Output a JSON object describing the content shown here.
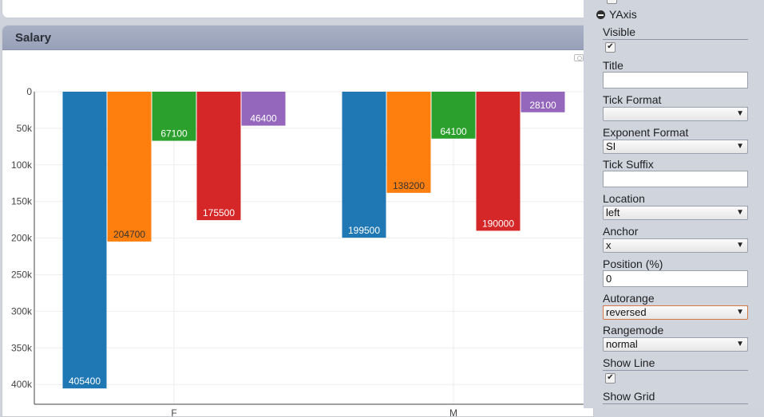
{
  "chart_panel": {
    "title": "Salary"
  },
  "sidebar": {
    "section": "YAxis",
    "fields": {
      "visible": {
        "label": "Visible",
        "checked": true
      },
      "title": {
        "label": "Title",
        "value": ""
      },
      "tick_format": {
        "label": "Tick Format",
        "value": ""
      },
      "exponent_format": {
        "label": "Exponent Format",
        "value": "SI"
      },
      "tick_suffix": {
        "label": "Tick Suffix",
        "value": ""
      },
      "location": {
        "label": "Location",
        "value": "left"
      },
      "anchor": {
        "label": "Anchor",
        "value": "x"
      },
      "position": {
        "label": "Position (%)",
        "value": "0"
      },
      "autorange": {
        "label": "Autorange",
        "value": "reversed"
      },
      "rangemode": {
        "label": "Rangemode",
        "value": "normal"
      },
      "show_line": {
        "label": "Show Line",
        "checked": true
      },
      "show_grid": {
        "label": "Show Grid"
      }
    },
    "check_mark": "✔",
    "dropdown_arrow": "▼"
  },
  "chart_data": {
    "type": "bar",
    "title": "",
    "categories": [
      "F",
      "M"
    ],
    "series": [
      {
        "values": [
          405400,
          199500
        ],
        "color": "#1f77b4",
        "label_color": "#ffffff"
      },
      {
        "values": [
          204700,
          138200
        ],
        "color": "#ff7f0e",
        "label_color": "#333333"
      },
      {
        "values": [
          67100,
          64100
        ],
        "color": "#2ca02c",
        "label_color": "#ffffff"
      },
      {
        "values": [
          175500,
          190000
        ],
        "color": "#d62728",
        "label_color": "#ffffff"
      },
      {
        "values": [
          46400,
          28100
        ],
        "color": "#9467bd",
        "label_color": "#ffffff"
      }
    ],
    "y_ticks": [
      0,
      50000,
      100000,
      150000,
      200000,
      250000,
      300000,
      350000,
      400000
    ],
    "y_tick_labels": [
      "0",
      "50k",
      "100k",
      "150k",
      "200k",
      "250k",
      "300k",
      "350k",
      "400k"
    ],
    "ylim": [
      0,
      427000
    ],
    "y_reversed": true,
    "grid": true
  }
}
